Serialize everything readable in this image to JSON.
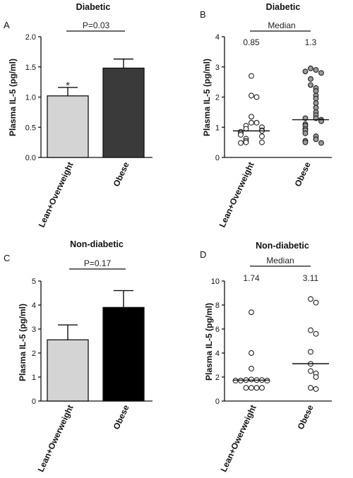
{
  "chart_data": [
    {
      "panel": "A",
      "type": "bar",
      "title": "Diabetic",
      "ylabel": "Plasma IL-5 (pg/ml)",
      "ylim": [
        0,
        2.0
      ],
      "yticks": [
        "0.0",
        "0.5",
        "1.0",
        "1.5",
        "2.0"
      ],
      "categories": [
        "Lean+Overweight",
        "Obese"
      ],
      "values": [
        1.02,
        1.48
      ],
      "errors": [
        0.14,
        0.15
      ],
      "bar_colors": [
        "#d4d4d4",
        "#3a3a3a"
      ],
      "bracket_label": "P=0.03",
      "marker_label": "*"
    },
    {
      "panel": "B",
      "type": "scatter",
      "title": "Diabetic",
      "ylabel": "Plasma IL-5 (pg/ml)",
      "ylim": [
        0,
        4
      ],
      "yticks": [
        "0",
        "1",
        "2",
        "3",
        "4"
      ],
      "categories": [
        "Lean+Overweight",
        "Obese"
      ],
      "bracket_label": "Median",
      "median_labels": [
        "0.85",
        "1.3"
      ],
      "medians": [
        0.88,
        1.25
      ],
      "series": [
        {
          "values": [
            2.7,
            2.05,
            2.0,
            1.35,
            1.15,
            1.15,
            1.05,
            1.0,
            0.95,
            0.9,
            0.88,
            0.85,
            0.8,
            0.75,
            0.7,
            0.62,
            0.55,
            0.5,
            0.5,
            0.48
          ],
          "marker_fill": "#ffffff"
        },
        {
          "values": [
            2.95,
            2.9,
            2.85,
            2.8,
            2.6,
            2.4,
            2.3,
            2.2,
            2.05,
            1.95,
            1.8,
            1.65,
            1.5,
            1.4,
            1.3,
            1.3,
            1.25,
            1.2,
            1.1,
            1.05,
            0.95,
            0.9,
            0.8,
            0.7,
            0.6,
            0.55,
            0.5,
            0.48
          ],
          "marker_fill": "#9a9a9a"
        }
      ]
    },
    {
      "panel": "C",
      "type": "bar",
      "title": "Non-diabetic",
      "ylabel": "Plasma IL-5 (pg/ml)",
      "ylim": [
        0,
        5
      ],
      "yticks": [
        "0",
        "1",
        "2",
        "3",
        "4",
        "5"
      ],
      "categories": [
        "Lean+Owerweight",
        "Obese"
      ],
      "values": [
        2.55,
        3.9
      ],
      "errors": [
        0.62,
        0.7
      ],
      "bar_colors": [
        "#d4d4d4",
        "#000000"
      ],
      "bracket_label": "P=0.17"
    },
    {
      "panel": "D",
      "type": "scatter",
      "title": "Non-diabetic",
      "ylabel": "Plasma IL-5 (pg/ml)",
      "ylim": [
        0,
        10
      ],
      "yticks": [
        "0",
        "2",
        "4",
        "6",
        "8",
        "10"
      ],
      "categories": [
        "Lean+Owerweight",
        "Obese"
      ],
      "bracket_label": "Median",
      "median_labels": [
        "1.74",
        "3.11"
      ],
      "medians": [
        1.74,
        3.11
      ],
      "series": [
        {
          "values": [
            7.4,
            4.0,
            2.7,
            1.8,
            1.75,
            1.75,
            1.75,
            1.7,
            1.7,
            1.7,
            1.1,
            1.1,
            1.1,
            1.1
          ],
          "marker_fill": "#ffffff"
        },
        {
          "values": [
            8.5,
            8.2,
            5.9,
            5.6,
            4.1,
            3.1,
            2.5,
            2.3,
            2.0,
            1.1,
            1.0
          ],
          "marker_fill": "#ffffff"
        }
      ]
    }
  ]
}
